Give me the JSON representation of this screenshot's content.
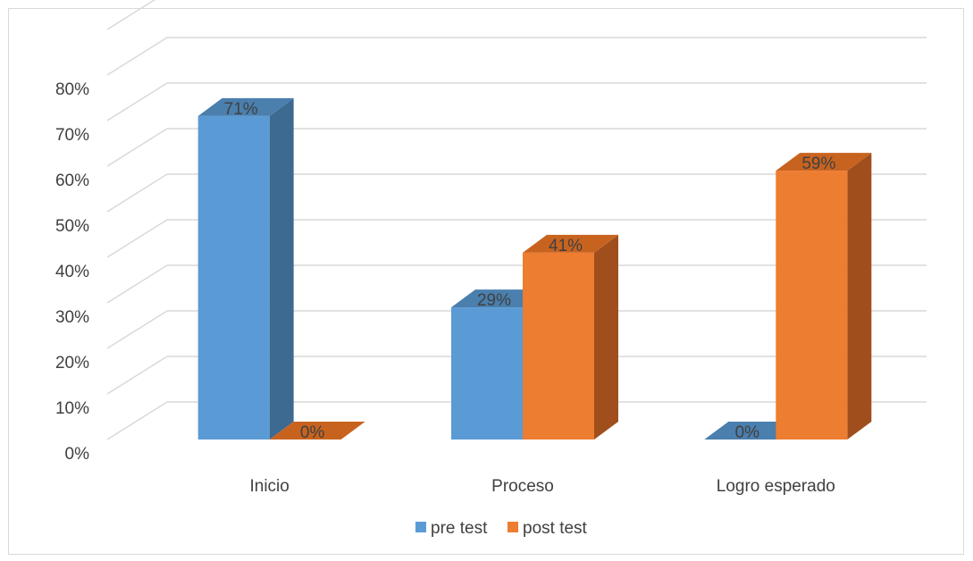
{
  "chart_data": {
    "type": "bar",
    "categories": [
      "Inicio",
      "Proceso",
      "Logro esperado"
    ],
    "series": [
      {
        "name": "pre test",
        "values": [
          0.71,
          0.29,
          0.0
        ],
        "labels": [
          "71%",
          "29%",
          "0%"
        ],
        "color": "#5b9bd5",
        "side_color": "#3d6a91",
        "top_color": "#4a7fae"
      },
      {
        "name": "post test",
        "values": [
          0.0,
          0.41,
          0.59
        ],
        "labels": [
          "0%",
          "41%",
          "59%"
        ],
        "color": "#ed7d31",
        "side_color": "#a04f1c",
        "top_color": "#c8631f"
      }
    ],
    "y_ticks": [
      "0%",
      "10%",
      "20%",
      "30%",
      "40%",
      "50%",
      "60%",
      "70%",
      "80%"
    ],
    "ylim": [
      0,
      0.8
    ],
    "grid": true,
    "legend_position": "bottom",
    "gridline_color": "#d9d9d9",
    "three_d": true
  }
}
